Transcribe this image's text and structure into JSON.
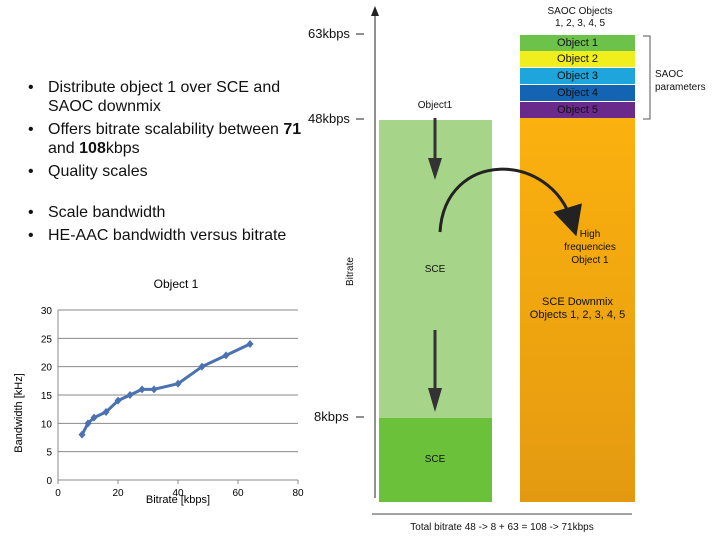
{
  "bullets": {
    "item1": "Distribute object 1 over SCE and SAOC downmix",
    "item2_pre": "Offers bitrate scalability between ",
    "item2_b1": "71",
    "item2_mid": " and ",
    "item2_b2": "108",
    "item2_post": "kbps",
    "item3": "Quality scales",
    "item4": "Scale bandwidth",
    "item5": "HE-AAC bandwidth versus bitrate"
  },
  "chart_data": {
    "type": "line",
    "title": "Object 1",
    "xlabel": "Bitrate [kbps]",
    "ylabel": "Bandwidth [kHz]",
    "xlim": [
      0,
      80
    ],
    "ylim": [
      0,
      30
    ],
    "xticks": [
      0,
      20,
      40,
      60,
      80
    ],
    "yticks": [
      0,
      5,
      10,
      15,
      20,
      25,
      30
    ],
    "grid": true,
    "series": [
      {
        "color": "#4a72b0",
        "x": [
          8,
          10,
          12,
          16,
          20,
          24,
          28,
          32,
          40,
          48,
          56,
          64
        ],
        "y": [
          8,
          10,
          11,
          12,
          14,
          15,
          16,
          16,
          17,
          20,
          22,
          24
        ]
      }
    ]
  },
  "diagram": {
    "ylabel": "Bitrate",
    "tick_63": "63kbps",
    "tick_48": "48kbps",
    "tick_8": "8kbps",
    "object1_label": "Object1",
    "sce_top": "SCE",
    "sce_bottom": "SCE",
    "high_freq": [
      "High",
      "frequencies",
      "Object 1"
    ],
    "saoc_objects_title": [
      "SAOC Objects",
      "1,  2, 3, 4, 5"
    ],
    "saoc_params": [
      "SAOC",
      "parameters"
    ],
    "objects": [
      {
        "label": "Object 1",
        "color": "#6cc24a"
      },
      {
        "label": "Object 2",
        "color": "#f0ee1c"
      },
      {
        "label": "Object 3",
        "color": "#1ea5dc"
      },
      {
        "label": "Object 4",
        "color": "#1464b4"
      },
      {
        "label": "Object 5",
        "color": "#6a2a8c"
      }
    ],
    "downmix": [
      "SCE Downmix",
      "Objects 1, 2, 3, 4, 5"
    ],
    "total": "Total bitrate 48 -> 8 + 63 = 108 -> 71kbps"
  }
}
